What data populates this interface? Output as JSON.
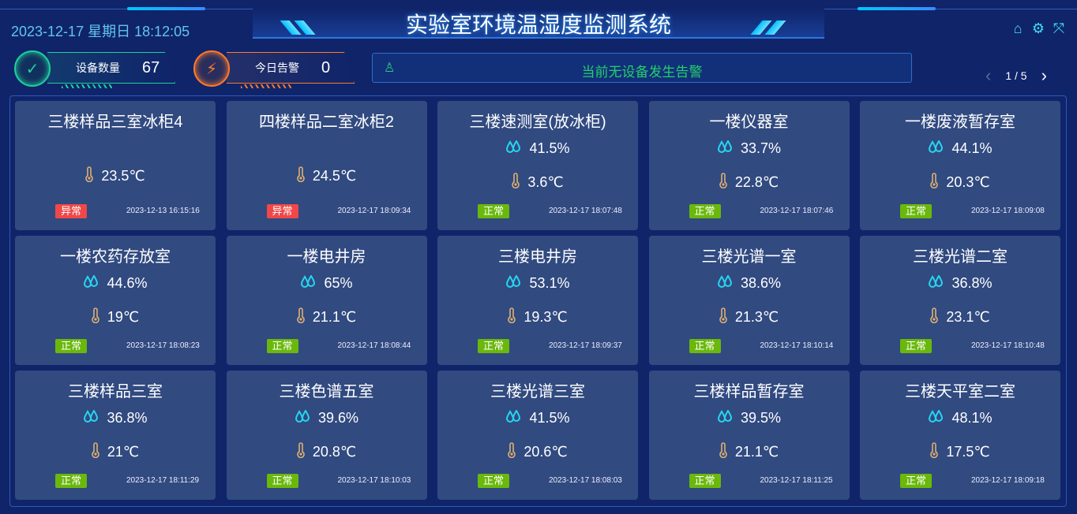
{
  "header": {
    "datetime": "2023-12-17 星期日 18:12:05",
    "title": "实验室环境温湿度监测系统",
    "icons": [
      "home-icon",
      "gear-icon",
      "fullscreen-icon"
    ]
  },
  "stats": [
    {
      "label": "设备数量",
      "value": "67",
      "icon": "check-cycle-icon",
      "color": "#1ed09a"
    },
    {
      "label": "今日告警",
      "value": "0",
      "icon": "alarm-light-icon",
      "color": "#ff7a2a"
    }
  ],
  "alarm": {
    "text": "当前无设备发生告警",
    "icon": "alarm-light-icon"
  },
  "pager": {
    "text": "1 / 5"
  },
  "colors": {
    "normal": "#6ab80c",
    "abnormal": "#f04848",
    "humidity": "#26d6f0",
    "temperature": "#e0b070"
  },
  "devices": [
    {
      "name": "三楼样品三室冰柜4",
      "humidity": null,
      "temperature": "23.5℃",
      "status": "异常",
      "time": "2023-12-13 16:15:16"
    },
    {
      "name": "四楼样品二室冰柜2",
      "humidity": null,
      "temperature": "24.5℃",
      "status": "异常",
      "time": "2023-12-17 18:09:34"
    },
    {
      "name": "三楼速测室(放冰柜)",
      "humidity": "41.5%",
      "temperature": "3.6℃",
      "status": "正常",
      "time": "2023-12-17 18:07:48"
    },
    {
      "name": "一楼仪器室",
      "humidity": "33.7%",
      "temperature": "22.8℃",
      "status": "正常",
      "time": "2023-12-17 18:07:46"
    },
    {
      "name": "一楼废液暂存室",
      "humidity": "44.1%",
      "temperature": "20.3℃",
      "status": "正常",
      "time": "2023-12-17 18:09:08"
    },
    {
      "name": "一楼农药存放室",
      "humidity": "44.6%",
      "temperature": "19℃",
      "status": "正常",
      "time": "2023-12-17 18:08:23"
    },
    {
      "name": "一楼电井房",
      "humidity": "65%",
      "temperature": "21.1℃",
      "status": "正常",
      "time": "2023-12-17 18:08:44"
    },
    {
      "name": "三楼电井房",
      "humidity": "53.1%",
      "temperature": "19.3℃",
      "status": "正常",
      "time": "2023-12-17 18:09:37"
    },
    {
      "name": "三楼光谱一室",
      "humidity": "38.6%",
      "temperature": "21.3℃",
      "status": "正常",
      "time": "2023-12-17 18:10:14"
    },
    {
      "name": "三楼光谱二室",
      "humidity": "36.8%",
      "temperature": "23.1℃",
      "status": "正常",
      "time": "2023-12-17 18:10:48"
    },
    {
      "name": "三楼样品三室",
      "humidity": "36.8%",
      "temperature": "21℃",
      "status": "正常",
      "time": "2023-12-17 18:11:29"
    },
    {
      "name": "三楼色谱五室",
      "humidity": "39.6%",
      "temperature": "20.8℃",
      "status": "正常",
      "time": "2023-12-17 18:10:03"
    },
    {
      "name": "三楼光谱三室",
      "humidity": "41.5%",
      "temperature": "20.6℃",
      "status": "正常",
      "time": "2023-12-17 18:08:03"
    },
    {
      "name": "三楼样品暂存室",
      "humidity": "39.5%",
      "temperature": "21.1℃",
      "status": "正常",
      "time": "2023-12-17 18:11:25"
    },
    {
      "name": "三楼天平室二室",
      "humidity": "48.1%",
      "temperature": "17.5℃",
      "status": "正常",
      "time": "2023-12-17 18:09:18"
    }
  ]
}
